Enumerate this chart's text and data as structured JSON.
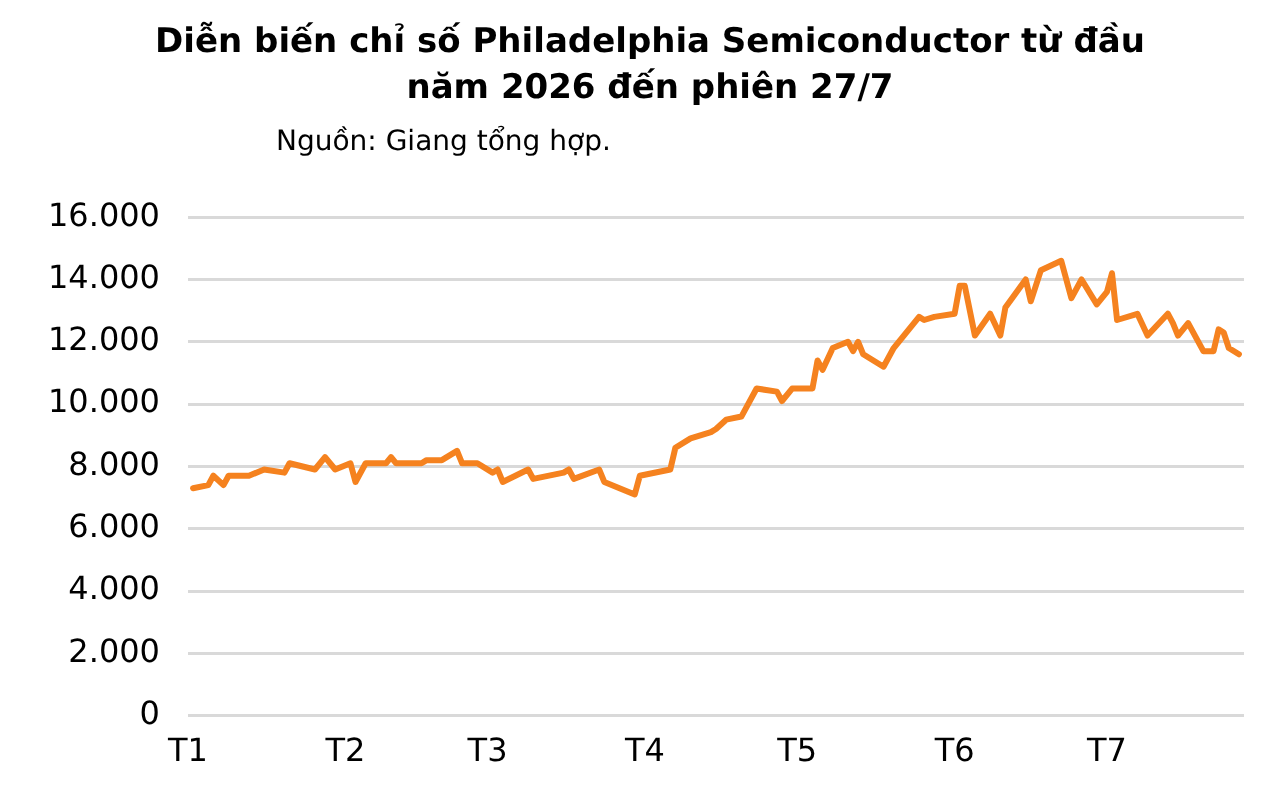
{
  "chart_data": {
    "type": "line",
    "title": "Diễn biến chỉ số Philadelphia Semiconductor từ đầu năm 2026 đến phiên 27/7",
    "subtitle": "Nguồn: Giang tổng hợp.",
    "x": [
      "2026-01-02",
      "2026-01-05",
      "2026-01-06",
      "2026-01-08",
      "2026-01-09",
      "2026-01-13",
      "2026-01-16",
      "2026-01-20",
      "2026-01-21",
      "2026-01-26",
      "2026-01-28",
      "2026-01-30",
      "2026-02-02",
      "2026-02-03",
      "2026-02-05",
      "2026-02-09",
      "2026-02-10",
      "2026-02-11",
      "2026-02-16",
      "2026-02-17",
      "2026-02-20",
      "2026-02-23",
      "2026-02-24",
      "2026-02-27",
      "2026-03-02",
      "2026-03-03",
      "2026-03-04",
      "2026-03-09",
      "2026-03-10",
      "2026-03-16",
      "2026-03-17",
      "2026-03-18",
      "2026-03-23",
      "2026-03-24",
      "2026-03-30",
      "2026-03-31",
      "2026-04-06",
      "2026-04-07",
      "2026-04-10",
      "2026-04-14",
      "2026-04-15",
      "2026-04-17",
      "2026-04-20",
      "2026-04-23",
      "2026-04-27",
      "2026-04-28",
      "2026-04-30",
      "2026-05-04",
      "2026-05-05",
      "2026-05-06",
      "2026-05-08",
      "2026-05-11",
      "2026-05-12",
      "2026-05-13",
      "2026-05-14",
      "2026-05-18",
      "2026-05-20",
      "2026-05-25",
      "2026-05-26",
      "2026-05-28",
      "2026-06-01",
      "2026-06-02",
      "2026-06-03",
      "2026-06-05",
      "2026-06-08",
      "2026-06-10",
      "2026-06-11",
      "2026-06-15",
      "2026-06-16",
      "2026-06-18",
      "2026-06-22",
      "2026-06-24",
      "2026-06-26",
      "2026-06-29",
      "2026-07-01",
      "2026-07-02",
      "2026-07-03",
      "2026-07-07",
      "2026-07-09",
      "2026-07-13",
      "2026-07-14",
      "2026-07-15",
      "2026-07-17",
      "2026-07-20",
      "2026-07-22",
      "2026-07-23",
      "2026-07-24",
      "2026-07-25",
      "2026-07-27"
    ],
    "series": [
      {
        "color": "#f5821f",
        "values": [
          7300,
          7400,
          7700,
          7400,
          7700,
          7700,
          7900,
          7800,
          8100,
          7900,
          8300,
          7900,
          8100,
          7500,
          8100,
          8100,
          8300,
          8100,
          8100,
          8200,
          8200,
          8500,
          8100,
          8100,
          7800,
          7900,
          7500,
          7900,
          7600,
          7800,
          7900,
          7600,
          7900,
          7500,
          7100,
          7700,
          7900,
          8600,
          8900,
          9100,
          9200,
          9500,
          9600,
          10500,
          10400,
          10100,
          10500,
          10500,
          11400,
          11100,
          11800,
          12000,
          11700,
          12000,
          11600,
          11200,
          11800,
          12800,
          12700,
          12800,
          12900,
          13800,
          13800,
          12200,
          12900,
          12200,
          13100,
          14000,
          13300,
          14300,
          14600,
          13400,
          14000,
          13200,
          13600,
          14200,
          12700,
          12900,
          12200,
          12900,
          12600,
          12200,
          12600,
          11700,
          11700,
          12400,
          12300,
          11800,
          11600
        ]
      }
    ],
    "xlim": [
      "2026-01-01",
      "2026-07-28"
    ],
    "xticks": [
      {
        "value": "2026-01-01",
        "label": "T1"
      },
      {
        "value": "2026-02-01",
        "label": "T2"
      },
      {
        "value": "2026-03-01",
        "label": "T3"
      },
      {
        "value": "2026-04-01",
        "label": "T4"
      },
      {
        "value": "2026-05-01",
        "label": "T5"
      },
      {
        "value": "2026-06-01",
        "label": "T6"
      },
      {
        "value": "2026-07-01",
        "label": "T7"
      }
    ],
    "ylim": [
      0,
      16000
    ],
    "yticks": [
      {
        "value": 0,
        "label": "0"
      },
      {
        "value": 2000,
        "label": "2.000"
      },
      {
        "value": 4000,
        "label": "4.000"
      },
      {
        "value": 6000,
        "label": "6.000"
      },
      {
        "value": 8000,
        "label": "8.000"
      },
      {
        "value": 10000,
        "label": "10.000"
      },
      {
        "value": 12000,
        "label": "12.000"
      },
      {
        "value": 14000,
        "label": "14.000"
      },
      {
        "value": 16000,
        "label": "16.000"
      }
    ],
    "grid": "y",
    "legend": false,
    "marker": "none",
    "line_style": "solid"
  }
}
